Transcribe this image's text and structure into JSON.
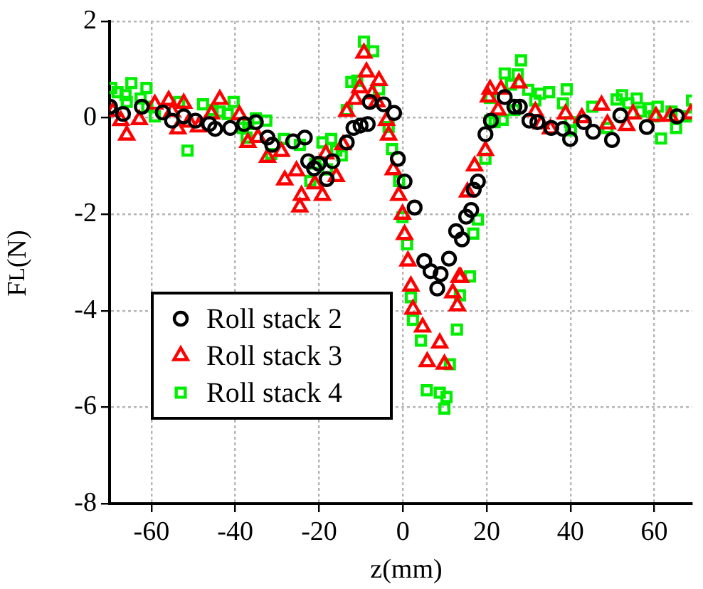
{
  "chart_data": {
    "type": "scatter",
    "xlabel": "z(mm)",
    "ylabel": "F$_{L}$(N)",
    "xlim": [
      -70,
      69
    ],
    "ylim": [
      -8,
      2
    ],
    "xticks": [
      -60,
      -40,
      -20,
      0,
      20,
      40,
      60
    ],
    "yticks": [
      -8,
      -6,
      -4,
      -2,
      0,
      2
    ],
    "grid": true,
    "legend": "bottom left",
    "series": [
      {
        "name": "Roll stack 2",
        "color": "#000000",
        "marker": "circle",
        "x": [
          -69.9,
          -66.8,
          -62.3,
          -57.3,
          -55.1,
          -52.3,
          -49.5,
          -46.2,
          -44.8,
          -41.2,
          -37.9,
          -35.1,
          -32.3,
          -31.2,
          -26.2,
          -23.4,
          -22.6,
          -21.2,
          -20.1,
          -18.2,
          -16.8,
          -13.4,
          -11.8,
          -10.1,
          -8.4,
          -7.9,
          -4.6,
          -2.1,
          -1.2,
          0.4,
          2.8,
          5.1,
          6.6,
          8.2,
          9,
          11,
          12.7,
          14.1,
          15.1,
          16.3,
          16.9,
          17.9,
          19.7,
          21,
          24.3,
          26.6,
          27.9,
          30.2,
          32.1,
          35.4,
          38.2,
          39.9,
          43.2,
          45.4,
          49.9,
          51.9,
          58.2,
          65.4
        ],
        "values": [
          0.23,
          0.08,
          0.23,
          0.11,
          -0.06,
          0.03,
          -0.06,
          -0.13,
          -0.23,
          -0.21,
          -0.13,
          -0.09,
          -0.41,
          -0.56,
          -0.49,
          -0.41,
          -0.9,
          -1.05,
          -0.95,
          -1.27,
          -0.9,
          -0.51,
          -0.21,
          -0.16,
          -0.13,
          0.33,
          0.28,
          0.1,
          -0.85,
          -1.32,
          -1.86,
          -2.97,
          -3.18,
          -3.54,
          -3.24,
          -2.92,
          -2.35,
          -2.52,
          -2.05,
          -1.91,
          -1.49,
          -1.32,
          -0.34,
          -0.06,
          0.43,
          0.23,
          0.23,
          -0.06,
          -0.09,
          -0.21,
          -0.23,
          -0.44,
          -0.09,
          -0.29,
          -0.46,
          0.05,
          -0.19,
          0.03
        ]
      },
      {
        "name": "Roll stack 3",
        "color": "#ff0000",
        "marker": "triangle",
        "x": [
          -69.2,
          -67.3,
          -65.9,
          -62.9,
          -59.2,
          -55.9,
          -55.1,
          -53.7,
          -52.3,
          -51,
          -48.8,
          -45.7,
          -43.7,
          -39,
          -37,
          -34.6,
          -32.3,
          -29,
          -28.2,
          -25.4,
          -24.2,
          -24.6,
          -21,
          -19.2,
          -18.4,
          -15.9,
          -14.3,
          -13.4,
          -11.4,
          -10.3,
          -9.3,
          -8.7,
          -7.3,
          -6.2,
          -5.7,
          -3.9,
          -3.4,
          -2.3,
          -1,
          -0.1,
          0.4,
          1.2,
          1.9,
          2.4,
          4.7,
          5.8,
          8.8,
          9.9,
          11.9,
          13,
          13.4,
          13.8,
          15.4,
          17.1,
          19.7,
          20.4,
          20.8,
          22.7,
          23.4,
          27.7,
          31.6,
          33,
          35.2,
          38.8,
          42.7,
          47.4,
          48.8,
          53.4,
          54.9,
          60.4,
          63.8,
          68.7
        ],
        "values": [
          0.13,
          -0.06,
          -0.36,
          -0.04,
          0.28,
          0.36,
          0.13,
          -0.23,
          0.3,
          -0.09,
          -0.19,
          0.08,
          0.38,
          0.06,
          -0.51,
          -0.41,
          -0.82,
          -0.7,
          -1.29,
          -1.1,
          -1.61,
          -1.85,
          -1.37,
          -1.61,
          -0.75,
          -1.22,
          -0.56,
          0.13,
          0.38,
          0.62,
          1.34,
          0.95,
          0.5,
          0.33,
          0.77,
          -0.06,
          -0.36,
          -1.08,
          -1.61,
          -2.0,
          -2.42,
          -2.97,
          -3.49,
          -3.97,
          -4.34,
          -5.06,
          -4.67,
          -5.11,
          -3.63,
          -3.9,
          -3.31,
          -3.31,
          -1.54,
          -1.0,
          -0.68,
          0.43,
          0.59,
          0.16,
          0.59,
          0.72,
          0.13,
          -0.13,
          -0.23,
          0.08,
          0.0,
          0.26,
          -0.13,
          -0.16,
          0.08,
          0.03,
          0.03,
          0.08
        ]
      },
      {
        "name": "Roll stack 4",
        "color": "#00ee00",
        "marker": "square",
        "x": [
          -69.6,
          -68.1,
          -66.2,
          -65.9,
          -64.8,
          -62.6,
          -61.2,
          -61,
          -59.2,
          -53.4,
          -51.4,
          -47.7,
          -45.4,
          -43.7,
          -41.8,
          -40.4,
          -38.2,
          -37.3,
          -36.9,
          -35.1,
          -32.6,
          -31.4,
          -28.4,
          -24.6,
          -22.1,
          -20.9,
          -19.2,
          -18.1,
          -17.1,
          -15.9,
          -14.6,
          -13.4,
          -12.3,
          -10.9,
          -9.3,
          -7.1,
          -5.7,
          -3.4,
          -2.6,
          -0.9,
          -0.1,
          1,
          1.9,
          2.4,
          4.3,
          5.7,
          8.8,
          9.9,
          10.4,
          11.2,
          12.9,
          13.6,
          16,
          16.8,
          17.9,
          19.7,
          20.8,
          20.8,
          21.9,
          23.8,
          24.3,
          25.8,
          26.6,
          27.4,
          28.2,
          29.9,
          31.6,
          32.7,
          34.9,
          38.2,
          39.1,
          39.9,
          40.1,
          45.2,
          48.8,
          51,
          52.3,
          53.8,
          55.8,
          56.8,
          58.6,
          59.9,
          60.8,
          61.6,
          64.1,
          65.2,
          68.2,
          69
        ],
        "values": [
          0.62,
          0.53,
          0.47,
          0.33,
          0.72,
          0.4,
          0.62,
          0.23,
          0.03,
          0.33,
          -0.68,
          0.28,
          0.16,
          0.13,
          0.08,
          0.33,
          -0.21,
          -0.41,
          -0.13,
          -0.01,
          -0.06,
          -0.75,
          -0.44,
          -0.56,
          -1.31,
          -0.95,
          -0.51,
          -1.07,
          -0.44,
          -0.68,
          -0.78,
          0.16,
          0.74,
          0.77,
          1.58,
          1.38,
          0.59,
          -0.19,
          -0.65,
          -1.31,
          -2.06,
          -2.62,
          -3.72,
          -4.19,
          -4.62,
          -5.65,
          -5.7,
          -6.03,
          -5.79,
          -5.11,
          -4.39,
          -3.68,
          -3.29,
          -2.4,
          -2.11,
          -0.85,
          -0.06,
          0.41,
          -0.09,
          -0.04,
          0.92,
          0.69,
          0.16,
          0.9,
          1.19,
          0.58,
          0.36,
          0.5,
          0.53,
          0.3,
          0.59,
          -0.09,
          -0.26,
          0.23,
          -0.21,
          0.38,
          0.47,
          0.3,
          0.4,
          0.13,
          0.2,
          0.03,
          0.23,
          -0.43,
          0.13,
          -0.21,
          0.03,
          0.36
        ]
      }
    ]
  }
}
